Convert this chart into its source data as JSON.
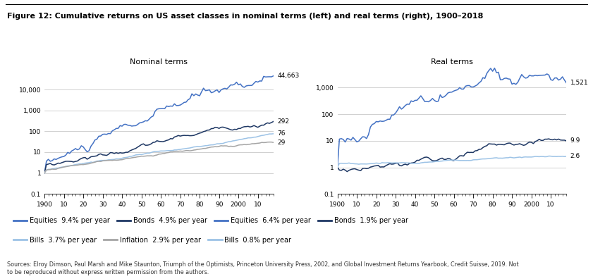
{
  "title": "Figure 12: Cumulative returns on US asset classes in nominal terms (left) and real terms (right), 1900–2018",
  "left_title": "Nominal terms",
  "right_title": "Real terms",
  "nom_end_labels": {
    "equities": "44,663",
    "bonds": "292",
    "bills": "76",
    "inflation": "29"
  },
  "real_end_labels": {
    "equities": "1,521",
    "bonds": "9.9",
    "bills": "2.6"
  },
  "source_text": "Sources: Elroy Dimson, Paul Marsh and Mike Staunton, Triumph of the Optimists, Princeton University Press, 2002, and Global Investment Returns Yearbook, Credit Suisse, 2019. Not\nto be reproduced without express written permission from the authors.",
  "line_colors": {
    "equities": "#4472C4",
    "bonds": "#1F3864",
    "bills": "#9DC3E6",
    "inflation": "#A5A5A5"
  },
  "bg_color": "#FFFFFF",
  "grid_color": "#BEBEBE"
}
